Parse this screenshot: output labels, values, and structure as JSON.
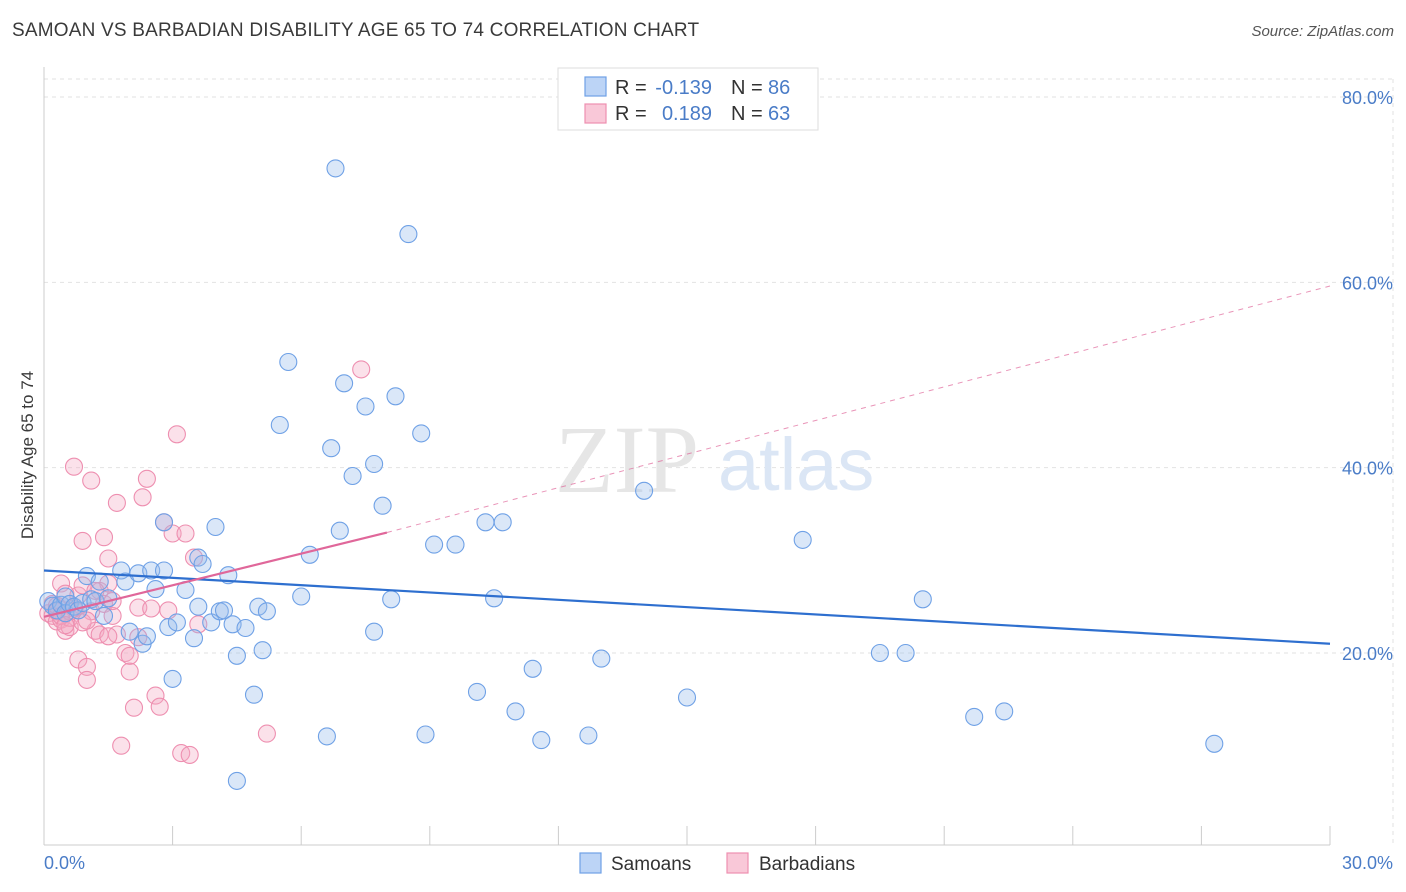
{
  "title": "SAMOAN VS BARBADIAN DISABILITY AGE 65 TO 74 CORRELATION CHART",
  "source": "Source: ZipAtlas.com",
  "watermark": {
    "zip": "ZIP",
    "atlas": "atlas"
  },
  "legend": {
    "rows": [
      {
        "r_label": "R =",
        "r_value": "-0.139",
        "n_label": "N =",
        "n_value": "86",
        "color": "#6fa1e6"
      },
      {
        "r_label": "R =",
        "r_value": "0.189",
        "n_label": "N =",
        "n_value": "63",
        "color": "#ee8fb0"
      }
    ]
  },
  "bottom_legend": [
    {
      "label": "Samoans",
      "color": "#6fa1e6"
    },
    {
      "label": "Barbadians",
      "color": "#ee8fb0"
    }
  ],
  "chart_data": {
    "type": "scatter",
    "title": "SAMOAN VS BARBADIAN DISABILITY AGE 65 TO 74 CORRELATION CHART",
    "xlabel": "",
    "ylabel": "Disability Age 65 to 74",
    "xlim": [
      0,
      30
    ],
    "ylim": [
      0,
      80
    ],
    "x_tick_labels": [
      "0.0%",
      "30.0%"
    ],
    "y_ticks": [
      20,
      40,
      60,
      80
    ],
    "y_tick_labels": [
      "20.0%",
      "40.0%",
      "60.0%",
      "80.0%"
    ],
    "grid": true,
    "legend_position": "top-center",
    "series": [
      {
        "name": "Samoans",
        "color": "#6fa1e6",
        "points": [
          [
            0.1,
            25.6
          ],
          [
            0.2,
            25.1
          ],
          [
            0.3,
            24.6
          ],
          [
            0.4,
            25.2
          ],
          [
            0.5,
            24.3
          ],
          [
            0.5,
            26.1
          ],
          [
            0.6,
            25.3
          ],
          [
            0.7,
            25.0
          ],
          [
            0.8,
            24.6
          ],
          [
            0.9,
            25.4
          ],
          [
            1.0,
            28.3
          ],
          [
            1.1,
            25.8
          ],
          [
            1.2,
            25.6
          ],
          [
            1.3,
            27.7
          ],
          [
            1.4,
            24.0
          ],
          [
            1.5,
            25.9
          ],
          [
            1.8,
            28.9
          ],
          [
            1.9,
            27.7
          ],
          [
            2.0,
            22.3
          ],
          [
            2.2,
            28.6
          ],
          [
            2.3,
            21.0
          ],
          [
            2.4,
            21.8
          ],
          [
            2.5,
            28.9
          ],
          [
            2.6,
            26.9
          ],
          [
            2.8,
            28.9
          ],
          [
            2.8,
            34.1
          ],
          [
            2.9,
            22.8
          ],
          [
            3.0,
            17.2
          ],
          [
            3.1,
            23.3
          ],
          [
            3.3,
            26.8
          ],
          [
            3.5,
            21.6
          ],
          [
            3.6,
            25.0
          ],
          [
            3.6,
            30.3
          ],
          [
            3.7,
            29.6
          ],
          [
            3.9,
            23.3
          ],
          [
            4.0,
            33.6
          ],
          [
            4.1,
            24.5
          ],
          [
            4.2,
            24.6
          ],
          [
            4.3,
            28.4
          ],
          [
            4.4,
            23.1
          ],
          [
            4.5,
            19.7
          ],
          [
            4.7,
            22.7
          ],
          [
            4.9,
            15.5
          ],
          [
            5.0,
            25.0
          ],
          [
            5.1,
            20.3
          ],
          [
            5.2,
            24.5
          ],
          [
            5.5,
            44.6
          ],
          [
            5.7,
            51.4
          ],
          [
            6.0,
            26.1
          ],
          [
            6.2,
            30.6
          ],
          [
            6.6,
            11.0
          ],
          [
            6.7,
            42.1
          ],
          [
            6.8,
            72.3
          ],
          [
            6.9,
            33.2
          ],
          [
            7.0,
            49.1
          ],
          [
            7.2,
            39.1
          ],
          [
            7.5,
            46.6
          ],
          [
            7.7,
            22.3
          ],
          [
            7.7,
            40.4
          ],
          [
            7.9,
            35.9
          ],
          [
            8.1,
            25.8
          ],
          [
            8.2,
            47.7
          ],
          [
            8.5,
            65.2
          ],
          [
            8.8,
            43.7
          ],
          [
            8.9,
            11.2
          ],
          [
            9.1,
            31.7
          ],
          [
            9.6,
            31.7
          ],
          [
            10.1,
            15.8
          ],
          [
            10.3,
            34.1
          ],
          [
            10.5,
            25.9
          ],
          [
            10.7,
            34.1
          ],
          [
            11.0,
            13.7
          ],
          [
            11.4,
            18.3
          ],
          [
            11.6,
            10.6
          ],
          [
            12.7,
            11.1
          ],
          [
            13.0,
            19.4
          ],
          [
            14.0,
            37.5
          ],
          [
            15.0,
            15.2
          ],
          [
            17.7,
            32.2
          ],
          [
            19.5,
            20.0
          ],
          [
            20.1,
            20.0
          ],
          [
            20.5,
            25.8
          ],
          [
            21.7,
            13.1
          ],
          [
            22.4,
            13.7
          ],
          [
            27.3,
            10.2
          ],
          [
            4.5,
            6.2
          ]
        ]
      },
      {
        "name": "Barbadians",
        "color": "#ee8fb0",
        "points": [
          [
            0.1,
            24.3
          ],
          [
            0.2,
            24.0
          ],
          [
            0.2,
            25.3
          ],
          [
            0.3,
            23.4
          ],
          [
            0.3,
            24.5
          ],
          [
            0.4,
            23.6
          ],
          [
            0.4,
            27.5
          ],
          [
            0.5,
            22.4
          ],
          [
            0.5,
            26.4
          ],
          [
            0.6,
            22.8
          ],
          [
            0.6,
            23.8
          ],
          [
            0.7,
            24.8
          ],
          [
            0.7,
            40.1
          ],
          [
            0.8,
            19.3
          ],
          [
            0.8,
            26.2
          ],
          [
            0.9,
            27.3
          ],
          [
            0.9,
            32.1
          ],
          [
            1.0,
            18.5
          ],
          [
            1.0,
            17.1
          ],
          [
            1.1,
            24.5
          ],
          [
            1.1,
            38.6
          ],
          [
            1.2,
            22.4
          ],
          [
            1.3,
            22.0
          ],
          [
            1.3,
            26.7
          ],
          [
            1.4,
            25.3
          ],
          [
            1.4,
            32.5
          ],
          [
            1.5,
            30.2
          ],
          [
            1.5,
            27.5
          ],
          [
            1.6,
            24.0
          ],
          [
            1.6,
            25.6
          ],
          [
            1.7,
            36.2
          ],
          [
            1.7,
            22.0
          ],
          [
            1.8,
            10.0
          ],
          [
            1.9,
            20.0
          ],
          [
            2.0,
            18.0
          ],
          [
            2.0,
            19.7
          ],
          [
            2.1,
            14.1
          ],
          [
            2.2,
            24.9
          ],
          [
            2.3,
            36.8
          ],
          [
            2.4,
            38.8
          ],
          [
            2.5,
            24.8
          ],
          [
            2.6,
            15.4
          ],
          [
            2.7,
            14.2
          ],
          [
            2.8,
            34.1
          ],
          [
            2.9,
            24.6
          ],
          [
            3.0,
            32.9
          ],
          [
            3.1,
            43.6
          ],
          [
            3.2,
            9.2
          ],
          [
            3.3,
            32.9
          ],
          [
            3.4,
            9.0
          ],
          [
            3.5,
            30.3
          ],
          [
            3.6,
            23.1
          ],
          [
            5.2,
            11.3
          ],
          [
            7.4,
            50.6
          ],
          [
            0.3,
            25.1
          ],
          [
            0.4,
            24.0
          ],
          [
            0.6,
            24.5
          ],
          [
            0.9,
            23.3
          ],
          [
            1.2,
            26.7
          ],
          [
            1.5,
            21.8
          ],
          [
            2.2,
            21.7
          ],
          [
            0.5,
            23.0
          ],
          [
            1.0,
            23.5
          ]
        ]
      }
    ],
    "trendlines": [
      {
        "series": "Samoans",
        "x": [
          0,
          30
        ],
        "y": [
          28.9,
          21.0
        ],
        "style": "solid"
      },
      {
        "series": "Barbadians",
        "x": [
          0,
          8
        ],
        "y": [
          23.9,
          33.0
        ],
        "style": "solid"
      },
      {
        "series": "Barbadians",
        "x": [
          8,
          30
        ],
        "y": [
          33.0,
          59.6
        ],
        "style": "dashed"
      }
    ]
  }
}
